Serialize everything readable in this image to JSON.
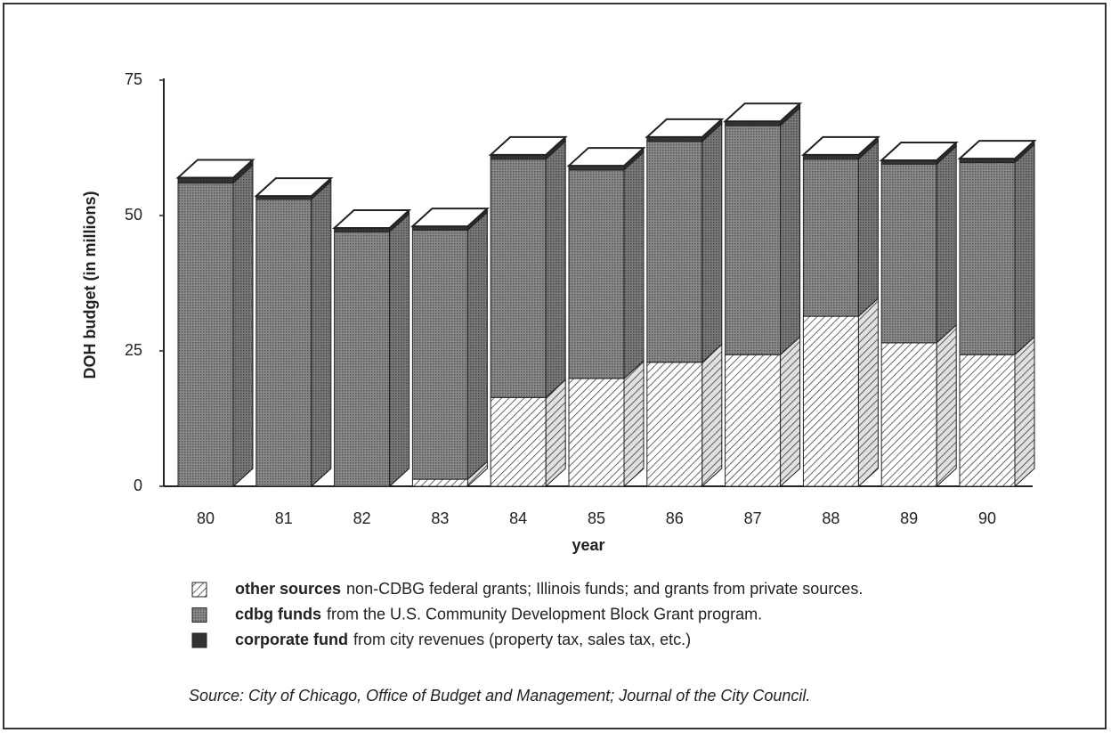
{
  "chart_data": {
    "type": "bar",
    "stacked": true,
    "y_label": "DOH budget (in millions)",
    "x_label": "year",
    "categories": [
      "80",
      "81",
      "82",
      "83",
      "84",
      "85",
      "86",
      "87",
      "88",
      "89",
      "90"
    ],
    "series": [
      {
        "name": "other sources",
        "description": "non-CDBG federal grants; Illinois funds; and grants from private sources.",
        "color": "#444444",
        "pattern": "hatch",
        "values": [
          0,
          0,
          0,
          1.3,
          16.4,
          19.9,
          22.9,
          24.3,
          31.4,
          26.5,
          24.3
        ]
      },
      {
        "name": "cdbg funds",
        "description": "from the U.S. Community Development Block Grant program.",
        "color": "#555555",
        "pattern": "dots",
        "values": [
          56,
          53,
          47,
          46,
          44,
          38.5,
          40.8,
          42.3,
          29,
          33,
          35.5
        ]
      },
      {
        "name": "corporate fund",
        "description": "from city revenues (property tax, sales tax, etc.)",
        "color": "#333333",
        "pattern": "solid",
        "values": [
          1,
          0.6,
          0.7,
          0.7,
          0.8,
          0.8,
          0.8,
          0.8,
          0.8,
          0.7,
          0.7
        ]
      }
    ],
    "ylim": [
      0,
      75
    ],
    "yticks": [
      0,
      25,
      50,
      75
    ],
    "source": "Source: City of Chicago, Office of Budget and Management; Journal of the City Council."
  }
}
